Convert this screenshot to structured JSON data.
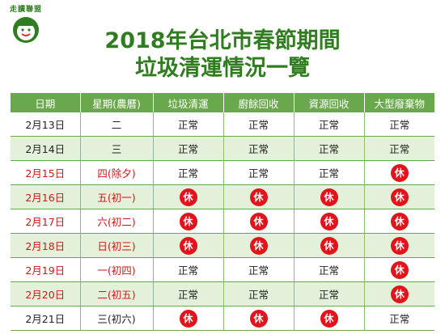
{
  "logo": {
    "text": "走讀聯盟",
    "icon": "smiling-face-icon"
  },
  "title": {
    "line1": "2018年台北市春節期間",
    "line2": "垃圾清運情況一覽"
  },
  "colors": {
    "header": "#69a84c",
    "alt_row": "#e4f1da",
    "title": "#2f7d1f",
    "holiday_text": "#d21414",
    "rest_badge": "#e3131b"
  },
  "columns": [
    "日期",
    "星期(農曆)",
    "垃圾清運",
    "廚餘回收",
    "資源回收",
    "大型廢棄物"
  ],
  "rows": [
    {
      "date": "2月13日",
      "weekday": "二",
      "trash": "正常",
      "food": "正常",
      "recycle": "正常",
      "bulky": "正常",
      "holiday": false
    },
    {
      "date": "2月14日",
      "weekday": "三",
      "trash": "正常",
      "food": "正常",
      "recycle": "正常",
      "bulky": "正常",
      "holiday": false
    },
    {
      "date": "2月15日",
      "weekday": "四(除夕)",
      "trash": "正常",
      "food": "正常",
      "recycle": "正常",
      "bulky": "休",
      "holiday": true
    },
    {
      "date": "2月16日",
      "weekday": "五(初一)",
      "trash": "休",
      "food": "休",
      "recycle": "休",
      "bulky": "休",
      "holiday": true
    },
    {
      "date": "2月17日",
      "weekday": "六(初二)",
      "trash": "休",
      "food": "休",
      "recycle": "休",
      "bulky": "休",
      "holiday": true
    },
    {
      "date": "2月18日",
      "weekday": "日(初三)",
      "trash": "休",
      "food": "休",
      "recycle": "休",
      "bulky": "休",
      "holiday": true
    },
    {
      "date": "2月19日",
      "weekday": "一(初四)",
      "trash": "正常",
      "food": "正常",
      "recycle": "正常",
      "bulky": "休",
      "holiday": true
    },
    {
      "date": "2月20日",
      "weekday": "二(初五)",
      "trash": "正常",
      "food": "正常",
      "recycle": "正常",
      "bulky": "休",
      "holiday": true
    },
    {
      "date": "2月21日",
      "weekday": "三(初六)",
      "trash": "休",
      "food": "休",
      "recycle": "休",
      "bulky": "正常",
      "holiday": false
    }
  ]
}
